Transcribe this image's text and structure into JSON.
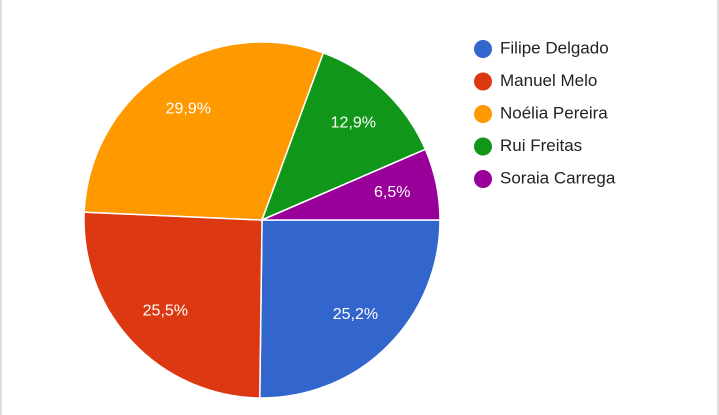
{
  "chart_data": {
    "type": "pie",
    "categories": [
      "Filipe Delgado",
      "Manuel Melo",
      "Noélia Pereira",
      "Rui Freitas",
      "Soraia Carrega"
    ],
    "values": [
      25.2,
      25.5,
      29.9,
      12.9,
      6.5
    ],
    "value_labels": [
      "25,2%",
      "25,5%",
      "29,9%",
      "12,9%",
      "6,5%"
    ],
    "colors": [
      "#3366cc",
      "#dc3912",
      "#ff9900",
      "#109618",
      "#990099"
    ],
    "legend": "right"
  }
}
